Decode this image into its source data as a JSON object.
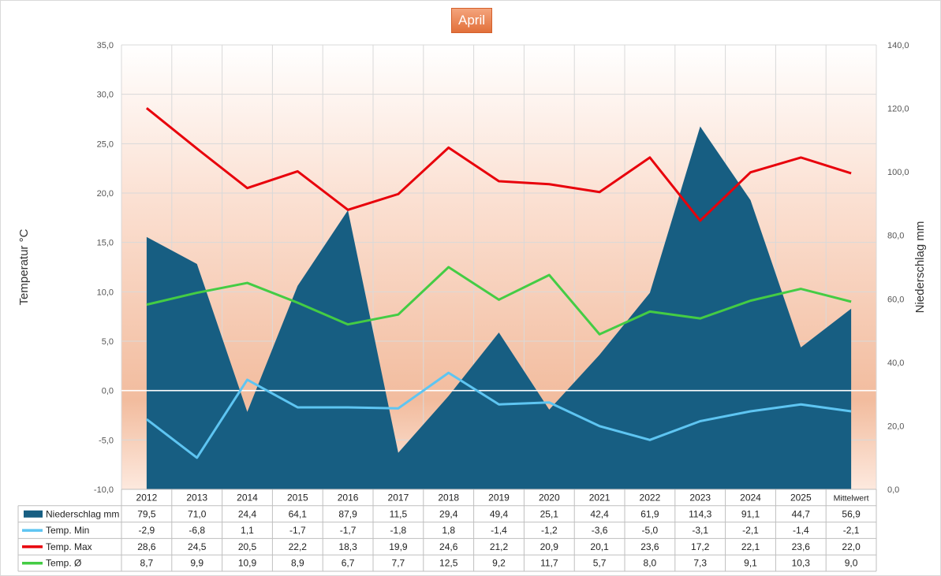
{
  "chart_data": {
    "type": "area+line",
    "title": "April",
    "ylabel_left": "Temperatur °C",
    "ylabel_right": "Niederschlag mm",
    "categories": [
      "2012",
      "2013",
      "2014",
      "2015",
      "2016",
      "2017",
      "2018",
      "2019",
      "2020",
      "2021",
      "2022",
      "2023",
      "2024",
      "2025",
      "Mittelwert"
    ],
    "y_left_ticks": [
      "35,0",
      "30,0",
      "25,0",
      "20,0",
      "15,0",
      "10,0",
      "5,0",
      "0,0",
      "-5,0",
      "-10,0"
    ],
    "y_right_ticks": [
      "140,0",
      "120,0",
      "100,0",
      "80,0",
      "60,0",
      "40,0",
      "20,0",
      "0,0"
    ],
    "ylim_left": [
      -10,
      35
    ],
    "ylim_right": [
      0,
      140
    ],
    "series": [
      {
        "name": "Niederschlag mm",
        "kind": "area",
        "axis": "right",
        "color": "#175e82",
        "values": [
          79.5,
          71.0,
          24.4,
          64.1,
          87.9,
          11.5,
          29.4,
          49.4,
          25.1,
          42.4,
          61.9,
          114.3,
          91.1,
          44.7,
          56.9
        ],
        "labels": [
          "79,5",
          "71,0",
          "24,4",
          "64,1",
          "87,9",
          "11,5",
          "29,4",
          "49,4",
          "25,1",
          "42,4",
          "61,9",
          "114,3",
          "91,1",
          "44,7",
          "56,9"
        ]
      },
      {
        "name": "Temp. Min",
        "kind": "line",
        "axis": "left",
        "color": "#5ec5f2",
        "values": [
          -2.9,
          -6.8,
          1.1,
          -1.7,
          -1.7,
          -1.8,
          1.8,
          -1.4,
          -1.2,
          -3.6,
          -5.0,
          -3.1,
          -2.1,
          -1.4,
          -2.1
        ],
        "labels": [
          "-2,9",
          "-6,8",
          "1,1",
          "-1,7",
          "-1,7",
          "-1,8",
          "1,8",
          "-1,4",
          "-1,2",
          "-3,6",
          "-5,0",
          "-3,1",
          "-2,1",
          "-1,4",
          "-2,1"
        ]
      },
      {
        "name": "Temp. Max",
        "kind": "line",
        "axis": "left",
        "color": "#e8000b",
        "values": [
          28.6,
          24.5,
          20.5,
          22.2,
          18.3,
          19.9,
          24.6,
          21.2,
          20.9,
          20.1,
          23.6,
          17.2,
          22.1,
          23.6,
          22.0
        ],
        "labels": [
          "28,6",
          "24,5",
          "20,5",
          "22,2",
          "18,3",
          "19,9",
          "24,6",
          "21,2",
          "20,9",
          "20,1",
          "23,6",
          "17,2",
          "22,1",
          "23,6",
          "22,0"
        ]
      },
      {
        "name": "Temp. Ø",
        "kind": "line",
        "axis": "left",
        "color": "#44cc44",
        "values": [
          8.7,
          9.9,
          10.9,
          8.9,
          6.7,
          7.7,
          12.5,
          9.2,
          11.7,
          5.7,
          8.0,
          7.3,
          9.1,
          10.3,
          9.0
        ],
        "labels": [
          "8,7",
          "9,9",
          "10,9",
          "8,9",
          "6,7",
          "7,7",
          "12,5",
          "9,2",
          "11,7",
          "5,7",
          "8,0",
          "7,3",
          "9,1",
          "10,3",
          "9,0"
        ]
      }
    ],
    "grid": true,
    "legend": "data-table"
  }
}
